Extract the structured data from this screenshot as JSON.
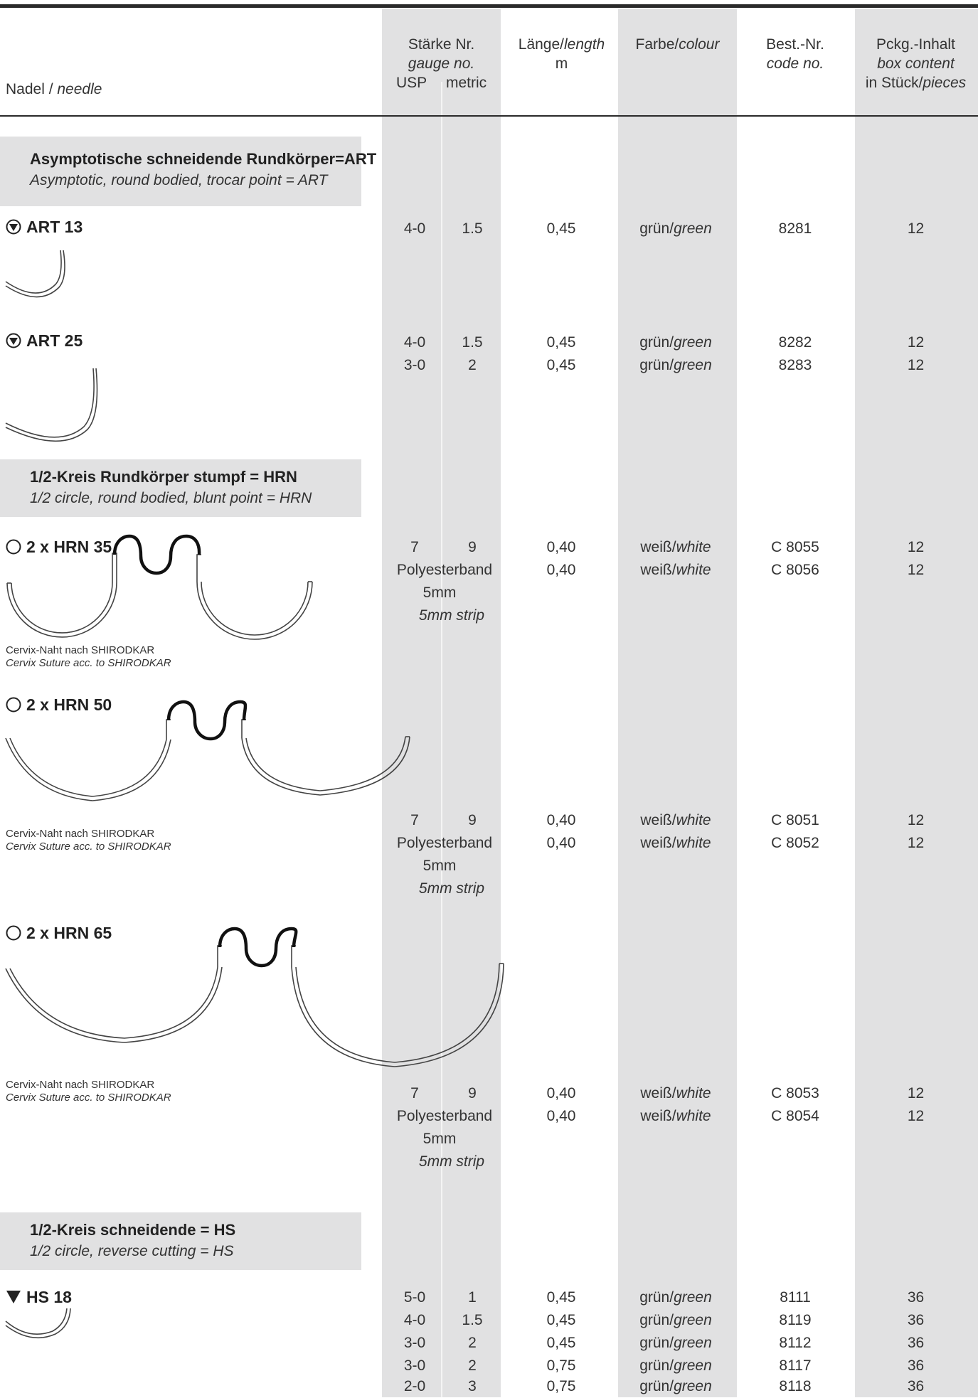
{
  "header": {
    "needle_label": "Nadel / ",
    "needle_label_en": "needle",
    "gauge_de": "Stärke Nr.",
    "gauge_en": "gauge no.",
    "usp": "USP",
    "metric": "metric",
    "length_de": "Länge/",
    "length_en": "length",
    "length_unit": "m",
    "colour_de": "Farbe/",
    "colour_en": "colour",
    "code_de": "Best.-Nr.",
    "code_en": "code no.",
    "box_de": "Pckg.-Inhalt",
    "box_en": "box content",
    "pieces_de": "in Stück/",
    "pieces_en": "pieces"
  },
  "sections": [
    {
      "title": "Asymptotische schneidende Rundkörper=ART",
      "subtitle": "Asymptotic, round bodied, trocar point = ART"
    },
    {
      "title": "1/2-Kreis Rundkörper stumpf = HRN",
      "subtitle": "1/2 circle, round bodied, blunt point = HRN"
    },
    {
      "title": "1/2-Kreis schneidende = HS",
      "subtitle": "1/2 circle, reverse cutting = HS"
    }
  ],
  "needles": [
    {
      "name": "ART 13",
      "symbol": "circle-triangle-icon"
    },
    {
      "name": "ART 25",
      "symbol": "circle-triangle-icon"
    },
    {
      "name": "2 x HRN 35",
      "symbol": "circle-icon",
      "note": "Cervix-Naht nach SHIRODKAR",
      "note_en": "Cervix Suture acc. to SHIRODKAR"
    },
    {
      "name": "2 x HRN 50",
      "symbol": "circle-icon",
      "note": "Cervix-Naht nach SHIRODKAR",
      "note_en": "Cervix Suture acc. to SHIRODKAR"
    },
    {
      "name": "2 x HRN 65",
      "symbol": "circle-icon",
      "note": "Cervix-Naht nach SHIRODKAR",
      "note_en": "Cervix Suture acc. to SHIRODKAR"
    },
    {
      "name": "HS 18",
      "symbol": "triangle-down-icon"
    }
  ],
  "poly": {
    "line1": "Polyesterband",
    "line2": "5mm",
    "line3": "5mm strip"
  },
  "rows": {
    "art13": [
      {
        "usp": "4-0",
        "metric": "1.5",
        "length": "0,45",
        "colour": "grün/",
        "colour_en": "green",
        "code": "8281",
        "pieces": "12"
      }
    ],
    "art25": [
      {
        "usp": "4-0",
        "metric": "1.5",
        "length": "0,45",
        "colour": "grün/",
        "colour_en": "green",
        "code": "8282",
        "pieces": "12"
      },
      {
        "usp": "3-0",
        "metric": "2",
        "length": "0,45",
        "colour": "grün/",
        "colour_en": "green",
        "code": "8283",
        "pieces": "12"
      }
    ],
    "hrn35": [
      {
        "usp": "7",
        "metric": "9",
        "length": "0,40",
        "colour": "weiß/",
        "colour_en": "white",
        "code": "C 8055",
        "pieces": "12"
      },
      {
        "length": "0,40",
        "colour": "weiß/",
        "colour_en": "white",
        "code": "C 8056",
        "pieces": "12"
      }
    ],
    "hrn50": [
      {
        "usp": "7",
        "metric": "9",
        "length": "0,40",
        "colour": "weiß/",
        "colour_en": "white",
        "code": "C 8051",
        "pieces": "12"
      },
      {
        "length": "0,40",
        "colour": "weiß/",
        "colour_en": "white",
        "code": "C 8052",
        "pieces": "12"
      }
    ],
    "hrn65": [
      {
        "usp": "7",
        "metric": "9",
        "length": "0,40",
        "colour": "weiß/",
        "colour_en": "white",
        "code": "C 8053",
        "pieces": "12"
      },
      {
        "length": "0,40",
        "colour": "weiß/",
        "colour_en": "white",
        "code": "C 8054",
        "pieces": "12"
      }
    ],
    "hs18": [
      {
        "usp": "5-0",
        "metric": "1",
        "length": "0,45",
        "colour": "grün/",
        "colour_en": "green",
        "code": "8111",
        "pieces": "36"
      },
      {
        "usp": "4-0",
        "metric": "1.5",
        "length": "0,45",
        "colour": "grün/",
        "colour_en": "green",
        "code": "8119",
        "pieces": "36"
      },
      {
        "usp": "3-0",
        "metric": "2",
        "length": "0,45",
        "colour": "grün/",
        "colour_en": "green",
        "code": "8112",
        "pieces": "36"
      },
      {
        "usp": "3-0",
        "metric": "2",
        "length": "0,75",
        "colour": "grün/",
        "colour_en": "green",
        "code": "8117",
        "pieces": "36"
      },
      {
        "usp": "2-0",
        "metric": "3",
        "length": "0,75",
        "colour": "grün/",
        "colour_en": "green",
        "code": "8118",
        "pieces": "36"
      }
    ]
  }
}
